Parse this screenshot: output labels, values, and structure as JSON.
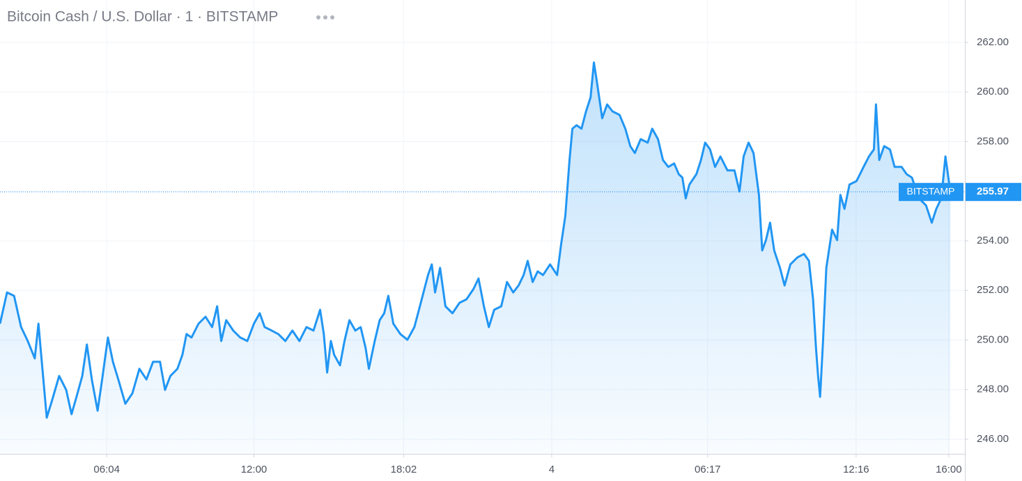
{
  "chart_data": {
    "type": "line",
    "title": "Bitcoin Cash / U.S. Dollar · 1 · BITSTAMP",
    "x": [
      106,
      123,
      140,
      157,
      173,
      190,
      199,
      207,
      219,
      232,
      249,
      266,
      279,
      291,
      305,
      316,
      328,
      342,
      353,
      367,
      379,
      392,
      409,
      426,
      443,
      460,
      476,
      493,
      505,
      518,
      535,
      547,
      557,
      569,
      586,
      603,
      619,
      631,
      641,
      653,
      670,
      687,
      704,
      720,
      734,
      746,
      763,
      779,
      796,
      813,
      830,
      847,
      864,
      880,
      889,
      897,
      906,
      914,
      928,
      939,
      951,
      965,
      978,
      990,
      998,
      1012,
      1024,
      1035,
      1045,
      1057,
      1074,
      1091,
      1108,
      1119,
      1130,
      1141,
      1150,
      1158,
      1170,
      1183,
      1200,
      1217,
      1234,
      1251,
      1263,
      1276,
      1288,
      1301,
      1318,
      1332,
      1347,
      1360,
      1372,
      1382,
      1394,
      1406,
      1419,
      1436,
      1453,
      1463,
      1473,
      1483,
      1490,
      1500,
      1512,
      1523,
      1534,
      1542,
      1550,
      1562,
      1574,
      1587,
      1604,
      1618,
      1630,
      1641,
      1655,
      1672,
      1683,
      1697,
      1709,
      1722,
      1736,
      1747,
      1756,
      1764,
      1773,
      1790,
      1801,
      1811,
      1823,
      1835,
      1848,
      1865,
      1882,
      1894,
      1904,
      1916,
      1928,
      1941,
      1949,
      1958,
      1968,
      1978,
      1992,
      2003,
      2017,
      2034,
      2050,
      2062,
      2072,
      2079,
      2084,
      2089,
      2096,
      2104,
      2118,
      2130,
      2138,
      2148,
      2160,
      2177,
      2194,
      2207,
      2219,
      2224,
      2232,
      2244,
      2258,
      2269,
      2286,
      2298,
      2311,
      2328,
      2345,
      2359,
      2370,
      2382,
      2392,
      2399,
      2404
    ],
    "series": [
      {
        "name": "BITSTAMP",
        "color": "#2196f3",
        "values": [
          250.66,
          251.92,
          251.78,
          250.52,
          249.96,
          249.26,
          250.66,
          249.12,
          246.87,
          247.57,
          248.55,
          247.99,
          247.01,
          247.71,
          248.55,
          249.82,
          248.41,
          247.15,
          248.41,
          250.1,
          249.12,
          248.41,
          247.43,
          247.85,
          248.84,
          248.41,
          249.12,
          249.12,
          247.99,
          248.55,
          248.84,
          249.4,
          250.24,
          250.1,
          250.66,
          250.94,
          250.52,
          251.36,
          249.96,
          250.8,
          250.38,
          250.1,
          249.96,
          250.66,
          251.08,
          250.52,
          250.38,
          250.24,
          249.96,
          250.38,
          249.96,
          250.52,
          250.38,
          251.22,
          250.24,
          248.69,
          249.96,
          249.4,
          248.98,
          249.96,
          250.8,
          250.38,
          250.52,
          249.68,
          248.84,
          249.96,
          250.8,
          251.08,
          251.78,
          250.66,
          250.24,
          250.01,
          250.52,
          251.22,
          251.92,
          252.62,
          253.05,
          251.92,
          252.91,
          251.36,
          251.08,
          251.5,
          251.64,
          252.06,
          252.48,
          251.36,
          250.52,
          251.22,
          251.36,
          252.34,
          251.92,
          252.2,
          252.62,
          253.19,
          252.34,
          252.77,
          252.62,
          253.05,
          252.62,
          253.89,
          255.01,
          257.26,
          258.52,
          258.66,
          258.52,
          259.22,
          259.78,
          261.19,
          260.34,
          258.94,
          259.5,
          259.22,
          259.08,
          258.52,
          257.82,
          257.54,
          258.1,
          257.96,
          258.52,
          258.1,
          257.26,
          256.98,
          257.12,
          256.69,
          256.55,
          255.71,
          256.27,
          256.69,
          257.26,
          257.96,
          257.68,
          256.98,
          257.4,
          256.84,
          256.84,
          255.99,
          257.4,
          257.96,
          257.54,
          255.85,
          253.61,
          254.03,
          254.73,
          253.61,
          252.91,
          252.2,
          253.05,
          253.33,
          253.47,
          253.19,
          251.64,
          249.68,
          248.55,
          247.71,
          249.96,
          252.91,
          254.45,
          254.03,
          255.85,
          255.29,
          256.27,
          256.41,
          256.98,
          257.4,
          257.68,
          259.5,
          257.26,
          257.82,
          257.68,
          256.98,
          256.98,
          256.69,
          256.55,
          255.71,
          255.43,
          254.73,
          255.29,
          255.71,
          257.4,
          256.55,
          255.97
        ]
      }
    ],
    "xlim": [
      106,
      2439
    ],
    "xticks": [
      {
        "value": 364,
        "label": "06:04"
      },
      {
        "value": 720,
        "label": "12:00"
      },
      {
        "value": 1082,
        "label": "18:02"
      },
      {
        "value": 1440,
        "label": "4"
      },
      {
        "value": 1817,
        "label": "06:17"
      },
      {
        "value": 2176,
        "label": "12:16"
      },
      {
        "value": 2400,
        "label": "16:00"
      }
    ],
    "ylim": [
      245.41,
      263.71
    ],
    "yticks": [
      {
        "value": 246,
        "label": "246.00"
      },
      {
        "value": 248,
        "label": "248.00"
      },
      {
        "value": 250,
        "label": "250.00"
      },
      {
        "value": 252,
        "label": "252.00"
      },
      {
        "value": 254,
        "label": "254.00"
      },
      {
        "value": 256,
        "label": "256.00"
      },
      {
        "value": 258,
        "label": "258.00"
      },
      {
        "value": 260,
        "label": "260.00"
      },
      {
        "value": 262,
        "label": "262.00"
      }
    ],
    "grid": true
  }
}
